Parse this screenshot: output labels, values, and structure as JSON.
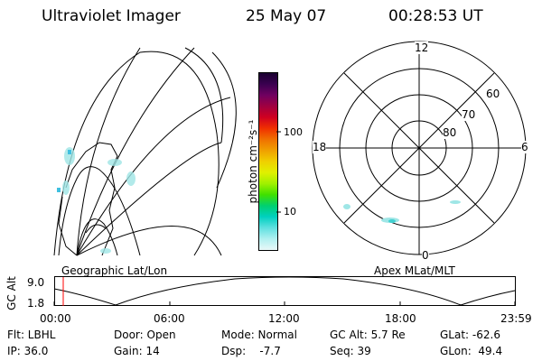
{
  "header": {
    "instrument": "Ultraviolet Imager",
    "date": "25 May 07",
    "time": "00:28:53 UT"
  },
  "left_panel": {
    "caption": "Geographic Lat/Lon"
  },
  "colorbar": {
    "label": "photon cm⁻²s⁻¹",
    "ticks": [
      "100",
      "10"
    ],
    "colors_top_to_bottom": [
      "#1a0030",
      "#3a0050",
      "#700060",
      "#a00040",
      "#d00020",
      "#f03000",
      "#f07000",
      "#f0a000",
      "#f0d000",
      "#e0f000",
      "#a0f000",
      "#40e000",
      "#00d070",
      "#00d0c0",
      "#60e0e0",
      "#b0f0f0",
      "#e8f8f8"
    ]
  },
  "right_panel": {
    "caption": "Apex MLat/MLT",
    "mlt_labels": {
      "top": "12",
      "left": "18",
      "right": "6",
      "bottom": "0"
    },
    "lat_labels": [
      "60",
      "70",
      "80"
    ]
  },
  "alt_plot": {
    "ylabel": "GC Alt",
    "yticks": [
      "9.0",
      "1.8"
    ],
    "xticks": [
      "00:00",
      "06:00",
      "12:00",
      "18:00",
      "23:59"
    ],
    "marker_color": "#ff0000"
  },
  "status": {
    "row1": {
      "flt": "Flt: LBHL",
      "door": "Door: Open",
      "mode": "Mode: Normal",
      "gcalt": "GC Alt: 5.7 Re",
      "glat": "GLat: -62.6"
    },
    "row2": {
      "ip": "IP: 36.0",
      "gain": "Gain: 14",
      "dsp": "Dsp:    -7.7",
      "seq": "Seq: 39",
      "glon": "GLon:  49.4"
    }
  }
}
